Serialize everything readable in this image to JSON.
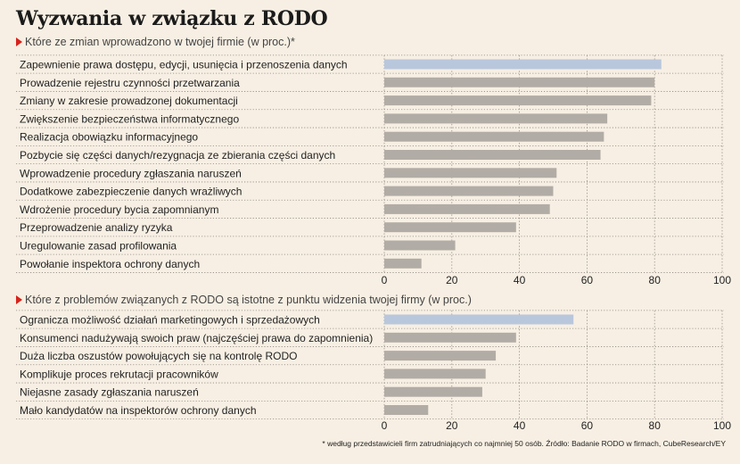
{
  "title": "Wyzwania w związku z RODO",
  "footnote": "* według przedstawicieli firm zatrudniających co najmniej 50 osób. Źródło: Badanie RODO w firmach, CubeResearch/EY",
  "colors": {
    "background": "#f7efe3",
    "bar": "#b2aca6",
    "highlight_bar": "#b9c7dc",
    "accent_triangle": "#d9211b"
  },
  "chart_data": [
    {
      "type": "bar",
      "orientation": "horizontal",
      "subtitle": "Które ze zmian wprowadzono w twojej firmie (w proc.)*",
      "categories": [
        "Zapewnienie prawa dostępu, edycji, usunięcia i przenoszenia danych",
        "Prowadzenie rejestru czynności przetwarzania",
        "Zmiany w zakresie prowadzonej dokumentacji",
        "Zwiększenie bezpieczeństwa informatycznego",
        "Realizacja obowiązku informacyjnego",
        "Pozbycie się części danych/rezygnacja ze zbierania części danych",
        "Wprowadzenie procedury zgłaszania naruszeń",
        "Dodatkowe zabezpieczenie danych wrażliwych",
        "Wdrożenie procedury bycia zapomnianym",
        "Przeprowadzenie analizy ryzyka",
        "Uregulowanie zasad profilowania",
        "Powołanie inspektora ochrony danych"
      ],
      "values": [
        82,
        80,
        79,
        66,
        65,
        64,
        51,
        50,
        49,
        39,
        21,
        11
      ],
      "highlight_index": 0,
      "xlim": [
        0,
        100
      ],
      "xticks": [
        0,
        20,
        40,
        60,
        80,
        100
      ]
    },
    {
      "type": "bar",
      "orientation": "horizontal",
      "subtitle": "Które z problemów związanych z RODO są istotne z punktu widzenia twojej firmy (w proc.)",
      "categories": [
        "Ogranicza możliwość działań marketingowych i sprzedażowych",
        "Konsumenci nadużywają swoich praw (najczęściej prawa do zapomnienia)",
        "Duża liczba oszustów powołujących się na kontrolę RODO",
        "Komplikuje proces rekrutacji pracowników",
        "Niejasne zasady zgłaszania naruszeń",
        "Mało kandydatów na inspektorów ochrony danych"
      ],
      "values": [
        56,
        39,
        33,
        30,
        29,
        13
      ],
      "highlight_index": 0,
      "xlim": [
        0,
        100
      ],
      "xticks": [
        0,
        20,
        40,
        60,
        80,
        100
      ]
    }
  ]
}
